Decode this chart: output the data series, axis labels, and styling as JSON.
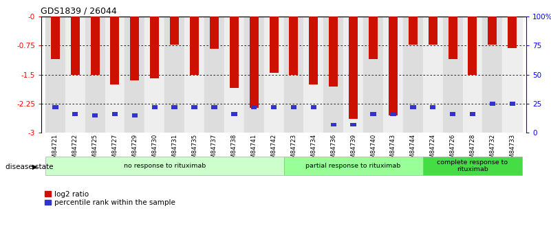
{
  "title": "GDS1839 / 26044",
  "samples": [
    "GSM84721",
    "GSM84722",
    "GSM84725",
    "GSM84727",
    "GSM84729",
    "GSM84730",
    "GSM84731",
    "GSM84735",
    "GSM84737",
    "GSM84738",
    "GSM84741",
    "GSM84742",
    "GSM84723",
    "GSM84734",
    "GSM84736",
    "GSM84739",
    "GSM84740",
    "GSM84743",
    "GSM84744",
    "GSM84724",
    "GSM84726",
    "GSM84728",
    "GSM84732",
    "GSM84733"
  ],
  "log2_values": [
    -1.1,
    -1.5,
    -1.5,
    -1.75,
    -1.65,
    -1.6,
    -0.72,
    -1.5,
    -0.83,
    -1.85,
    -2.35,
    -1.45,
    -1.5,
    -1.75,
    -1.8,
    -2.65,
    -1.1,
    -2.55,
    -0.72,
    -0.72,
    -1.1,
    -1.5,
    -0.73,
    -0.82
  ],
  "percentile_values": [
    22,
    16,
    15,
    16,
    15,
    22,
    22,
    22,
    22,
    16,
    22,
    22,
    22,
    22,
    7,
    7,
    16,
    16,
    22,
    22,
    16,
    16,
    25,
    25
  ],
  "groups": [
    {
      "label": "no response to rituximab",
      "start": 0,
      "end": 12,
      "color": "#ccffcc"
    },
    {
      "label": "partial response to rituximab",
      "start": 12,
      "end": 19,
      "color": "#99ff99"
    },
    {
      "label": "complete response to\nrituximab",
      "start": 19,
      "end": 24,
      "color": "#44dd44"
    }
  ],
  "ylim": [
    -3.0,
    0.0
  ],
  "yticks": [
    -3.0,
    -2.25,
    -1.5,
    -0.75,
    0.0
  ],
  "ytick_labels": [
    "-3",
    "-2.25",
    "-1.5",
    "-0.75",
    "-0"
  ],
  "bar_color": "#cc1100",
  "pct_color": "#3333cc",
  "bar_width": 0.45,
  "right_ytick_pcts": [
    0,
    25,
    50,
    75,
    100
  ],
  "right_ylabels": [
    "0",
    "25",
    "50",
    "75",
    "100%"
  ],
  "gridline_y": [
    -0.75,
    -1.5,
    -2.25
  ]
}
